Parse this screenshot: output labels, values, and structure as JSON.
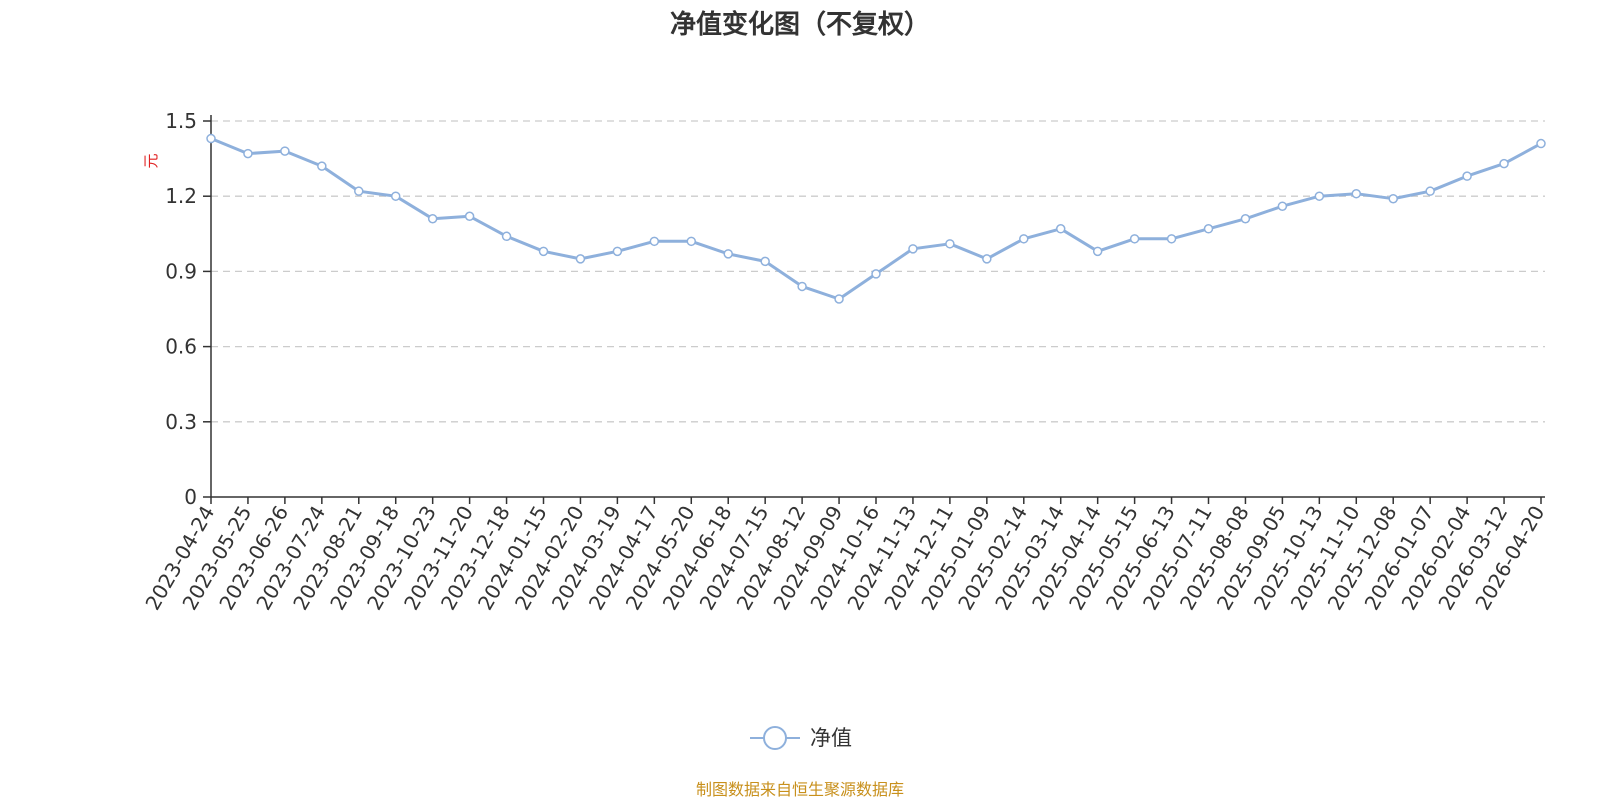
{
  "chart_data": {
    "type": "line",
    "title": "净值变化图（不复权）",
    "ylabel": "元",
    "xlabel": "",
    "ylim": [
      0,
      1.5
    ],
    "y_ticks": [
      "0",
      "0.3",
      "0.6",
      "0.9",
      "1.2",
      "1.5"
    ],
    "x_ticks": [
      "2023-04-24",
      "2023-05-25",
      "2023-06-26",
      "2023-07-24",
      "2023-08-21",
      "2023-09-18",
      "2023-10-23",
      "2023-11-20",
      "2023-12-18",
      "2024-01-15",
      "2024-02-20",
      "2024-03-19",
      "2024-04-17",
      "2024-05-20",
      "2024-06-18",
      "2024-07-15",
      "2024-08-12",
      "2024-09-09",
      "2024-10-16",
      "2024-11-13",
      "2024-12-11",
      "2025-01-09",
      "2025-02-14",
      "2025-03-14",
      "2025-04-14",
      "2025-05-15",
      "2025-06-13",
      "2025-07-11",
      "2025-08-08",
      "2025-09-05",
      "2025-10-13",
      "2025-11-10",
      "2025-12-08",
      "2026-01-07",
      "2026-02-04",
      "2026-03-12",
      "2026-04-20"
    ],
    "grid": true,
    "legend_position": "bottom-center",
    "series": [
      {
        "name": "净值",
        "color": "#8eb0dc",
        "x": [
          "2023-04-24",
          "2023-05-25",
          "2023-06-26",
          "2023-07-24",
          "2023-08-21",
          "2023-09-18",
          "2023-10-23",
          "2023-11-20",
          "2023-12-18",
          "2024-01-15",
          "2024-02-20",
          "2024-03-19",
          "2024-04-17",
          "2024-05-20",
          "2024-06-18",
          "2024-07-15",
          "2024-08-12",
          "2024-09-09",
          "2024-10-16",
          "2024-11-13",
          "2024-12-11",
          "2025-01-09",
          "2025-02-14",
          "2025-03-14",
          "2025-04-14",
          "2025-05-15",
          "2025-06-13",
          "2025-07-11",
          "2025-08-08",
          "2025-09-05",
          "2025-10-13",
          "2025-11-10",
          "2025-12-08",
          "2026-01-07",
          "2026-02-04",
          "2026-03-12",
          "2026-04-20"
        ],
        "values": [
          1.43,
          1.37,
          1.38,
          1.32,
          1.22,
          1.2,
          1.11,
          1.12,
          1.04,
          0.98,
          0.95,
          0.98,
          1.02,
          1.02,
          0.97,
          0.94,
          0.84,
          0.79,
          0.89,
          0.99,
          1.01,
          0.95,
          1.03,
          1.07,
          0.98,
          1.03,
          1.03,
          1.07,
          1.11,
          1.16,
          1.2,
          1.21,
          1.19,
          1.22,
          1.28,
          1.33,
          1.41
        ]
      }
    ]
  },
  "footer": {
    "source": "制图数据来自恒生聚源数据库"
  }
}
